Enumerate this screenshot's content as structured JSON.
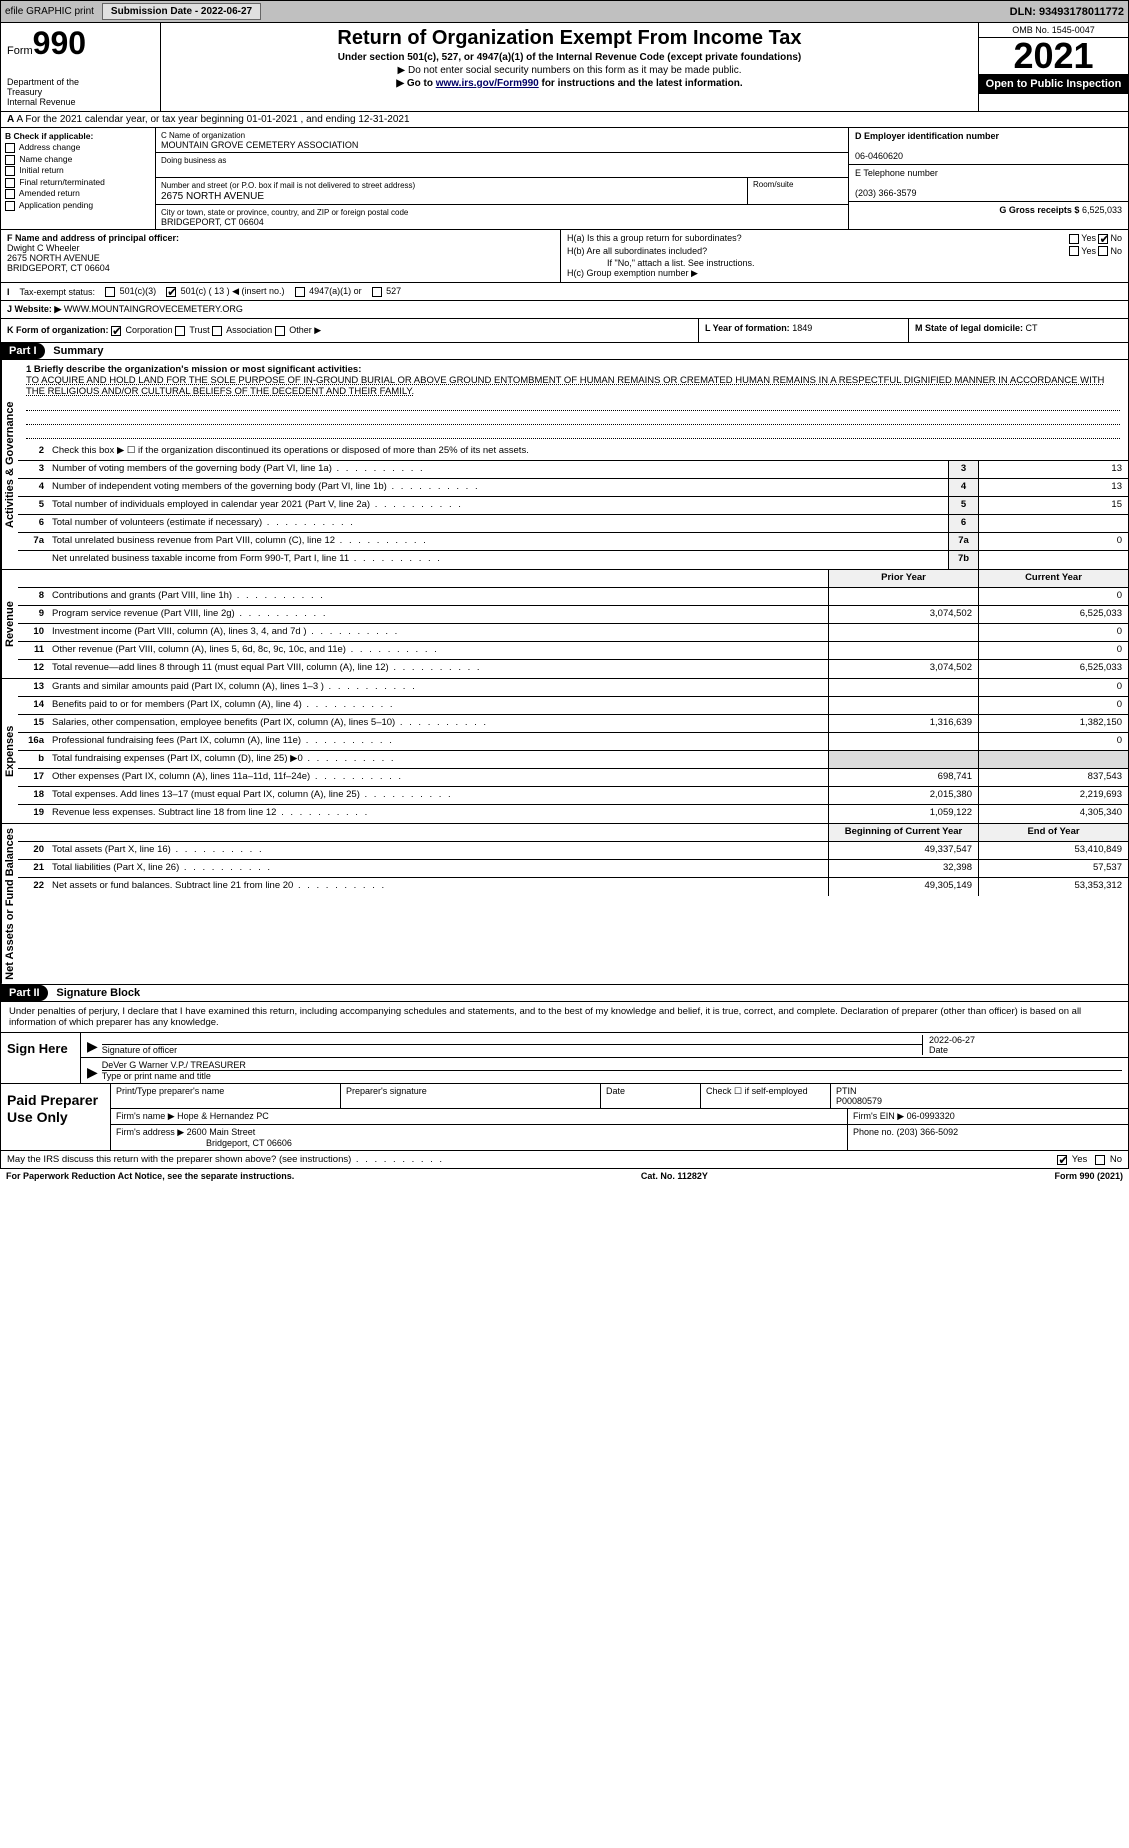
{
  "topbar": {
    "efile": "efile GRAPHIC print",
    "submission_label": "Submission Date - 2022-06-27",
    "dln": "DLN: 93493178011772"
  },
  "header": {
    "form_word": "Form",
    "form_num": "990",
    "title": "Return of Organization Exempt From Income Tax",
    "sub1": "Under section 501(c), 527, or 4947(a)(1) of the Internal Revenue Code (except private foundations)",
    "sub2": "▶ Do not enter social security numbers on this form as it may be made public.",
    "sub3": "▶ Go to www.irs.gov/Form990 for instructions and the latest information.",
    "link": "www.irs.gov/Form990",
    "dept": "Department of the Treasury\nInternal Revenue Service",
    "omb": "OMB No. 1545-0047",
    "year": "2021",
    "open": "Open to Public Inspection"
  },
  "rowA": "A For the 2021 calendar year, or tax year beginning 01-01-2021   , and ending 12-31-2021",
  "boxB": {
    "title": "B Check if applicable:",
    "items": [
      "Address change",
      "Name change",
      "Initial return",
      "Final return/terminated",
      "Amended return",
      "Application pending"
    ]
  },
  "boxC": {
    "name_label": "C Name of organization",
    "name": "MOUNTAIN GROVE CEMETERY ASSOCIATION",
    "dba_label": "Doing business as",
    "street_label": "Number and street (or P.O. box if mail is not delivered to street address)",
    "room_label": "Room/suite",
    "street": "2675 NORTH AVENUE",
    "city_label": "City or town, state or province, country, and ZIP or foreign postal code",
    "city": "BRIDGEPORT, CT  06604"
  },
  "boxD": {
    "ein_label": "D Employer identification number",
    "ein": "06-0460620",
    "phone_label": "E Telephone number",
    "phone": "(203) 366-3579",
    "gross_label": "G Gross receipts $",
    "gross": "6,525,033"
  },
  "boxF": {
    "label": "F Name and address of principal officer:",
    "name": "Dwight C Wheeler",
    "street": "2675 NORTH AVENUE",
    "city": "BRIDGEPORT, CT  06604"
  },
  "boxH": {
    "ha": "H(a)  Is this a group return for subordinates?",
    "hb": "H(b)  Are all subordinates included?",
    "hb_note": "If \"No,\" attach a list. See instructions.",
    "hc": "H(c)  Group exemption number ▶",
    "yes": "Yes",
    "no": "No"
  },
  "rowI": {
    "label": "Tax-exempt status:",
    "opts": [
      "501(c)(3)",
      "501(c) ( 13 ) ◀ (insert no.)",
      "4947(a)(1) or",
      "527"
    ],
    "checked_index": 1
  },
  "rowJ": {
    "label": "Website: ▶",
    "value": "WWW.MOUNTAINGROVECEMETERY.ORG"
  },
  "rowK": {
    "label": "K Form of organization:",
    "opts": [
      "Corporation",
      "Trust",
      "Association",
      "Other ▶"
    ],
    "checked_index": 0,
    "year_label": "L Year of formation:",
    "year": "1849",
    "state_label": "M State of legal domicile:",
    "state": "CT"
  },
  "part1": {
    "hdr": "Part I",
    "title": "Summary",
    "q1": "1  Briefly describe the organization's mission or most significant activities:",
    "mission": "TO ACQUIRE AND HOLD LAND FOR THE SOLE PURPOSE OF IN-GROUND BURIAL OR ABOVE GROUND ENTOMBMENT OF HUMAN REMAINS OR CREMATED HUMAN REMAINS IN A RESPECTFUL DIGNIFIED MANNER IN ACCORDANCE WITH THE RELIGIOUS AND/OR CULTURAL BELIEFS OF THE DECEDENT AND THEIR FAMILY.",
    "q2": "Check this box ▶ ☐ if the organization discontinued its operations or disposed of more than 25% of its net assets.",
    "vtab_gov": "Activities & Governance",
    "vtab_rev": "Revenue",
    "vtab_exp": "Expenses",
    "vtab_net": "Net Assets or Fund Balances",
    "gov_lines": [
      {
        "n": "3",
        "d": "Number of voting members of the governing body (Part VI, line 1a)",
        "box": "3",
        "v": "13"
      },
      {
        "n": "4",
        "d": "Number of independent voting members of the governing body (Part VI, line 1b)",
        "box": "4",
        "v": "13"
      },
      {
        "n": "5",
        "d": "Total number of individuals employed in calendar year 2021 (Part V, line 2a)",
        "box": "5",
        "v": "15"
      },
      {
        "n": "6",
        "d": "Total number of volunteers (estimate if necessary)",
        "box": "6",
        "v": ""
      },
      {
        "n": "7a",
        "d": "Total unrelated business revenue from Part VIII, column (C), line 12",
        "box": "7a",
        "v": "0"
      },
      {
        "n": "",
        "d": "Net unrelated business taxable income from Form 990-T, Part I, line 11",
        "box": "7b",
        "v": ""
      }
    ],
    "col_prior": "Prior Year",
    "col_current": "Current Year",
    "rev_lines": [
      {
        "n": "8",
        "d": "Contributions and grants (Part VIII, line 1h)",
        "p": "",
        "c": "0"
      },
      {
        "n": "9",
        "d": "Program service revenue (Part VIII, line 2g)",
        "p": "3,074,502",
        "c": "6,525,033"
      },
      {
        "n": "10",
        "d": "Investment income (Part VIII, column (A), lines 3, 4, and 7d )",
        "p": "",
        "c": "0"
      },
      {
        "n": "11",
        "d": "Other revenue (Part VIII, column (A), lines 5, 6d, 8c, 9c, 10c, and 11e)",
        "p": "",
        "c": "0"
      },
      {
        "n": "12",
        "d": "Total revenue—add lines 8 through 11 (must equal Part VIII, column (A), line 12)",
        "p": "3,074,502",
        "c": "6,525,033"
      }
    ],
    "exp_lines": [
      {
        "n": "13",
        "d": "Grants and similar amounts paid (Part IX, column (A), lines 1–3 )",
        "p": "",
        "c": "0"
      },
      {
        "n": "14",
        "d": "Benefits paid to or for members (Part IX, column (A), line 4)",
        "p": "",
        "c": "0"
      },
      {
        "n": "15",
        "d": "Salaries, other compensation, employee benefits (Part IX, column (A), lines 5–10)",
        "p": "1,316,639",
        "c": "1,382,150"
      },
      {
        "n": "16a",
        "d": "Professional fundraising fees (Part IX, column (A), line 11e)",
        "p": "",
        "c": "0"
      },
      {
        "n": "b",
        "d": "Total fundraising expenses (Part IX, column (D), line 25) ▶0",
        "p": "—",
        "c": "—"
      },
      {
        "n": "17",
        "d": "Other expenses (Part IX, column (A), lines 11a–11d, 11f–24e)",
        "p": "698,741",
        "c": "837,543"
      },
      {
        "n": "18",
        "d": "Total expenses. Add lines 13–17 (must equal Part IX, column (A), line 25)",
        "p": "2,015,380",
        "c": "2,219,693"
      },
      {
        "n": "19",
        "d": "Revenue less expenses. Subtract line 18 from line 12",
        "p": "1,059,122",
        "c": "4,305,340"
      }
    ],
    "col_begin": "Beginning of Current Year",
    "col_end": "End of Year",
    "net_lines": [
      {
        "n": "20",
        "d": "Total assets (Part X, line 16)",
        "p": "49,337,547",
        "c": "53,410,849"
      },
      {
        "n": "21",
        "d": "Total liabilities (Part X, line 26)",
        "p": "32,398",
        "c": "57,537"
      },
      {
        "n": "22",
        "d": "Net assets or fund balances. Subtract line 21 from line 20",
        "p": "49,305,149",
        "c": "53,353,312"
      }
    ]
  },
  "part2": {
    "hdr": "Part II",
    "title": "Signature Block",
    "decl": "Under penalties of perjury, I declare that I have examined this return, including accompanying schedules and statements, and to the best of my knowledge and belief, it is true, correct, and complete. Declaration of preparer (other than officer) is based on all information of which preparer has any knowledge.",
    "sign_here": "Sign Here",
    "sig_officer": "Signature of officer",
    "sig_date": "Date",
    "date_val": "2022-06-27",
    "name_title": "DeVer G Warner  V.P./ TREASURER",
    "name_label": "Type or print name and title",
    "paid_label": "Paid Preparer Use Only",
    "prep_name_label": "Print/Type preparer's name",
    "prep_sig_label": "Preparer's signature",
    "prep_date_label": "Date",
    "prep_check_label": "Check ☐ if self-employed",
    "ptin_label": "PTIN",
    "ptin": "P00080579",
    "firm_name_label": "Firm's name    ▶",
    "firm_name": "Hope & Hernandez PC",
    "firm_ein_label": "Firm's EIN ▶",
    "firm_ein": "06-0993320",
    "firm_addr_label": "Firm's address ▶",
    "firm_addr": "2600 Main Street",
    "firm_city": "Bridgeport, CT  06606",
    "firm_phone_label": "Phone no.",
    "firm_phone": "(203) 366-5092",
    "may_irs": "May the IRS discuss this return with the preparer shown above? (see instructions)",
    "yes": "Yes",
    "no": "No"
  },
  "footer": {
    "paperwork": "For Paperwork Reduction Act Notice, see the separate instructions.",
    "cat": "Cat. No. 11282Y",
    "form": "Form 990 (2021)"
  }
}
